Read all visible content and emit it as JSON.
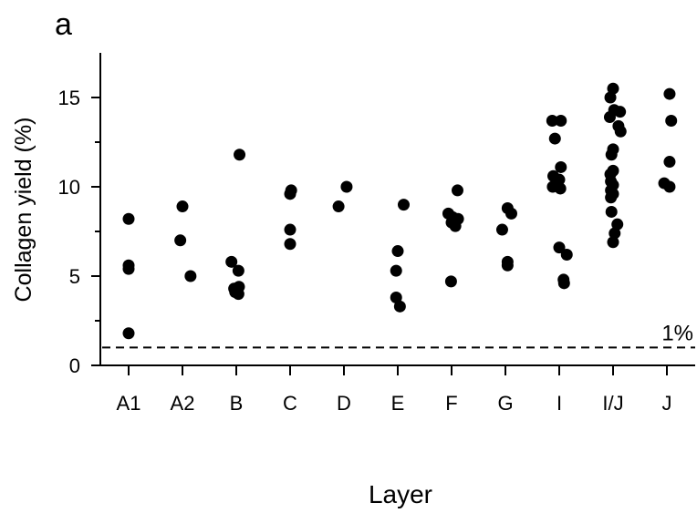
{
  "panel_label": "a",
  "chart_data": {
    "type": "scatter",
    "xlabel": "Layer",
    "ylabel": "Collagen yield (%)",
    "categories": [
      "A1",
      "A2",
      "B",
      "C",
      "D",
      "E",
      "F",
      "G",
      "I",
      "I/J",
      "J"
    ],
    "ylim": [
      0,
      17.5
    ],
    "yticks": [
      0,
      5,
      10,
      15
    ],
    "grid": false,
    "point_color": "#000000",
    "reference_line": {
      "y": 1,
      "label": "1%",
      "style": "dashed"
    },
    "points": [
      {
        "layer": "A1",
        "offset": 0,
        "y": 8.2
      },
      {
        "layer": "A1",
        "offset": 0,
        "y": 5.6
      },
      {
        "layer": "A1",
        "offset": 0,
        "y": 5.4
      },
      {
        "layer": "A1",
        "offset": 0,
        "y": 1.8
      },
      {
        "layer": "A2",
        "offset": 0,
        "y": 8.9
      },
      {
        "layer": "A2",
        "offset": -0.04,
        "y": 7.0
      },
      {
        "layer": "A2",
        "offset": 0.15,
        "y": 5.0
      },
      {
        "layer": "B",
        "offset": 0.06,
        "y": 11.8
      },
      {
        "layer": "B",
        "offset": -0.09,
        "y": 5.8
      },
      {
        "layer": "B",
        "offset": 0.04,
        "y": 5.3
      },
      {
        "layer": "B",
        "offset": -0.04,
        "y": 4.3
      },
      {
        "layer": "B",
        "offset": 0.05,
        "y": 4.4
      },
      {
        "layer": "B",
        "offset": -0.02,
        "y": 4.1
      },
      {
        "layer": "B",
        "offset": 0.04,
        "y": 4.0
      },
      {
        "layer": "C",
        "offset": 0.02,
        "y": 9.8
      },
      {
        "layer": "C",
        "offset": 0.0,
        "y": 9.6
      },
      {
        "layer": "C",
        "offset": 0.0,
        "y": 7.6
      },
      {
        "layer": "C",
        "offset": 0.0,
        "y": 6.8
      },
      {
        "layer": "D",
        "offset": 0.05,
        "y": 10.0
      },
      {
        "layer": "D",
        "offset": -0.1,
        "y": 8.9
      },
      {
        "layer": "E",
        "offset": 0.11,
        "y": 9.0
      },
      {
        "layer": "E",
        "offset": 0.0,
        "y": 6.4
      },
      {
        "layer": "E",
        "offset": -0.03,
        "y": 5.3
      },
      {
        "layer": "E",
        "offset": -0.03,
        "y": 3.8
      },
      {
        "layer": "E",
        "offset": 0.04,
        "y": 3.3
      },
      {
        "layer": "F",
        "offset": 0.11,
        "y": 9.8
      },
      {
        "layer": "F",
        "offset": -0.06,
        "y": 8.5
      },
      {
        "layer": "F",
        "offset": 0.02,
        "y": 8.3
      },
      {
        "layer": "F",
        "offset": 0.12,
        "y": 8.2
      },
      {
        "layer": "F",
        "offset": 0.0,
        "y": 8.0
      },
      {
        "layer": "F",
        "offset": 0.07,
        "y": 7.8
      },
      {
        "layer": "F",
        "offset": -0.01,
        "y": 4.7
      },
      {
        "layer": "G",
        "offset": 0.04,
        "y": 8.8
      },
      {
        "layer": "G",
        "offset": 0.11,
        "y": 8.5
      },
      {
        "layer": "G",
        "offset": -0.06,
        "y": 7.6
      },
      {
        "layer": "G",
        "offset": 0.04,
        "y": 5.8
      },
      {
        "layer": "G",
        "offset": 0.04,
        "y": 5.6
      },
      {
        "layer": "I",
        "offset": -0.13,
        "y": 13.7
      },
      {
        "layer": "I",
        "offset": 0.03,
        "y": 13.7
      },
      {
        "layer": "I",
        "offset": -0.08,
        "y": 12.7
      },
      {
        "layer": "I",
        "offset": 0.03,
        "y": 11.1
      },
      {
        "layer": "I",
        "offset": -0.11,
        "y": 10.6
      },
      {
        "layer": "I",
        "offset": 0.0,
        "y": 10.4
      },
      {
        "layer": "I",
        "offset": -0.12,
        "y": 10.0
      },
      {
        "layer": "I",
        "offset": 0.02,
        "y": 9.9
      },
      {
        "layer": "I",
        "offset": 0.0,
        "y": 6.6
      },
      {
        "layer": "I",
        "offset": 0.14,
        "y": 6.2
      },
      {
        "layer": "I",
        "offset": 0.08,
        "y": 4.8
      },
      {
        "layer": "I",
        "offset": 0.09,
        "y": 4.6
      },
      {
        "layer": "I/J",
        "offset": 0.0,
        "y": 15.5
      },
      {
        "layer": "I/J",
        "offset": -0.05,
        "y": 15.0
      },
      {
        "layer": "I/J",
        "offset": 0.13,
        "y": 14.2
      },
      {
        "layer": "I/J",
        "offset": 0.02,
        "y": 14.3
      },
      {
        "layer": "I/J",
        "offset": -0.06,
        "y": 13.9
      },
      {
        "layer": "I/J",
        "offset": 0.1,
        "y": 13.4
      },
      {
        "layer": "I/J",
        "offset": 0.14,
        "y": 13.1
      },
      {
        "layer": "I/J",
        "offset": 0.0,
        "y": 12.1
      },
      {
        "layer": "I/J",
        "offset": -0.03,
        "y": 11.8
      },
      {
        "layer": "I/J",
        "offset": 0.0,
        "y": 10.9
      },
      {
        "layer": "I/J",
        "offset": -0.05,
        "y": 10.7
      },
      {
        "layer": "I/J",
        "offset": -0.04,
        "y": 10.3
      },
      {
        "layer": "I/J",
        "offset": 0.0,
        "y": 10.1
      },
      {
        "layer": "I/J",
        "offset": -0.04,
        "y": 9.8
      },
      {
        "layer": "I/J",
        "offset": -0.04,
        "y": 9.4
      },
      {
        "layer": "I/J",
        "offset": 0.0,
        "y": 9.6
      },
      {
        "layer": "I/J",
        "offset": -0.03,
        "y": 8.6
      },
      {
        "layer": "I/J",
        "offset": 0.08,
        "y": 7.9
      },
      {
        "layer": "I/J",
        "offset": 0.03,
        "y": 7.4
      },
      {
        "layer": "I/J",
        "offset": 0.0,
        "y": 6.9
      },
      {
        "layer": "J",
        "offset": 0.05,
        "y": 15.2
      },
      {
        "layer": "J",
        "offset": 0.08,
        "y": 13.7
      },
      {
        "layer": "J",
        "offset": 0.05,
        "y": 11.4
      },
      {
        "layer": "J",
        "offset": -0.05,
        "y": 10.2
      },
      {
        "layer": "J",
        "offset": 0.05,
        "y": 10.0
      }
    ]
  }
}
